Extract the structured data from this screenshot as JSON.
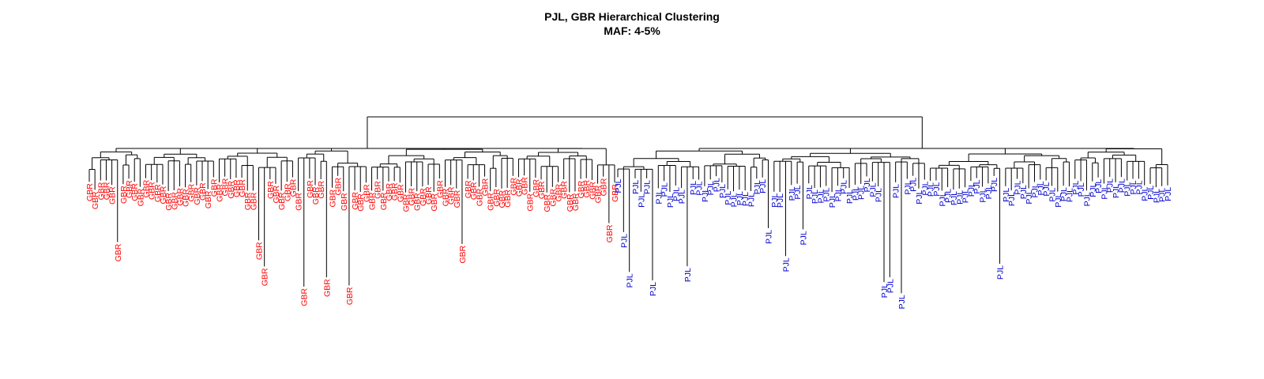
{
  "title": "PJL, GBR Hierarchical Clustering",
  "subtitle": "MAF: 4-5%",
  "colors": {
    "GBR": "#ff0000",
    "PJL": "#0000cc",
    "branch": "#000000"
  },
  "groups": [
    {
      "label": "GBR",
      "count": 94
    },
    {
      "label": "PJL",
      "count": 96
    }
  ],
  "dendrogram": {
    "root_merge_height": 0.93,
    "group_merge_heights": {
      "GBR": 0.82,
      "PJL": 0.85
    }
  }
}
